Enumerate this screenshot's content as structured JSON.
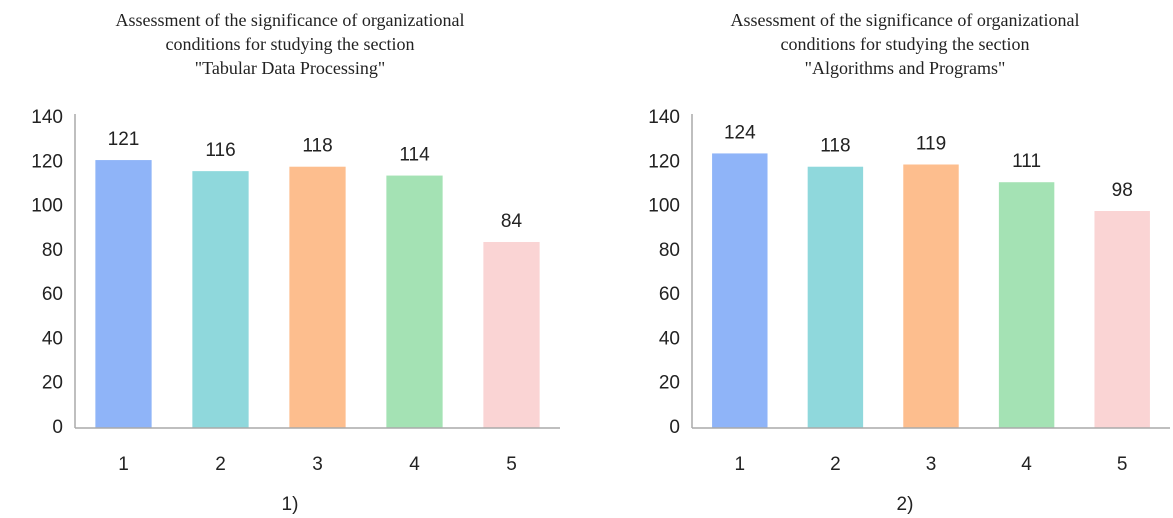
{
  "chart_data": [
    {
      "type": "bar",
      "title": [
        "Assessment of the significance of organizational",
        "conditions for studying the section",
        "\"Tabular Data Processing\""
      ],
      "categories": [
        "1",
        "2",
        "3",
        "4",
        "5"
      ],
      "values": [
        121,
        116,
        118,
        114,
        84
      ],
      "colors": [
        "#8fb4f8",
        "#8fd8dc",
        "#fdbe8e",
        "#a4e2b4",
        "#fad4d4"
      ],
      "ylim": [
        0,
        140
      ],
      "yticks": [
        0,
        20,
        40,
        60,
        80,
        100,
        120,
        140
      ],
      "caption": "1)"
    },
    {
      "type": "bar",
      "title": [
        "Assessment of the significance of organizational",
        "conditions for studying the section",
        "\"Algorithms and Programs\""
      ],
      "categories": [
        "1",
        "2",
        "3",
        "4",
        "5"
      ],
      "values": [
        124,
        118,
        119,
        111,
        98
      ],
      "colors": [
        "#8fb4f8",
        "#8fd8dc",
        "#fdbe8e",
        "#a4e2b4",
        "#fad4d4"
      ],
      "ylim": [
        0,
        140
      ],
      "yticks": [
        0,
        20,
        40,
        60,
        80,
        100,
        120,
        140
      ],
      "caption": "2)"
    }
  ]
}
